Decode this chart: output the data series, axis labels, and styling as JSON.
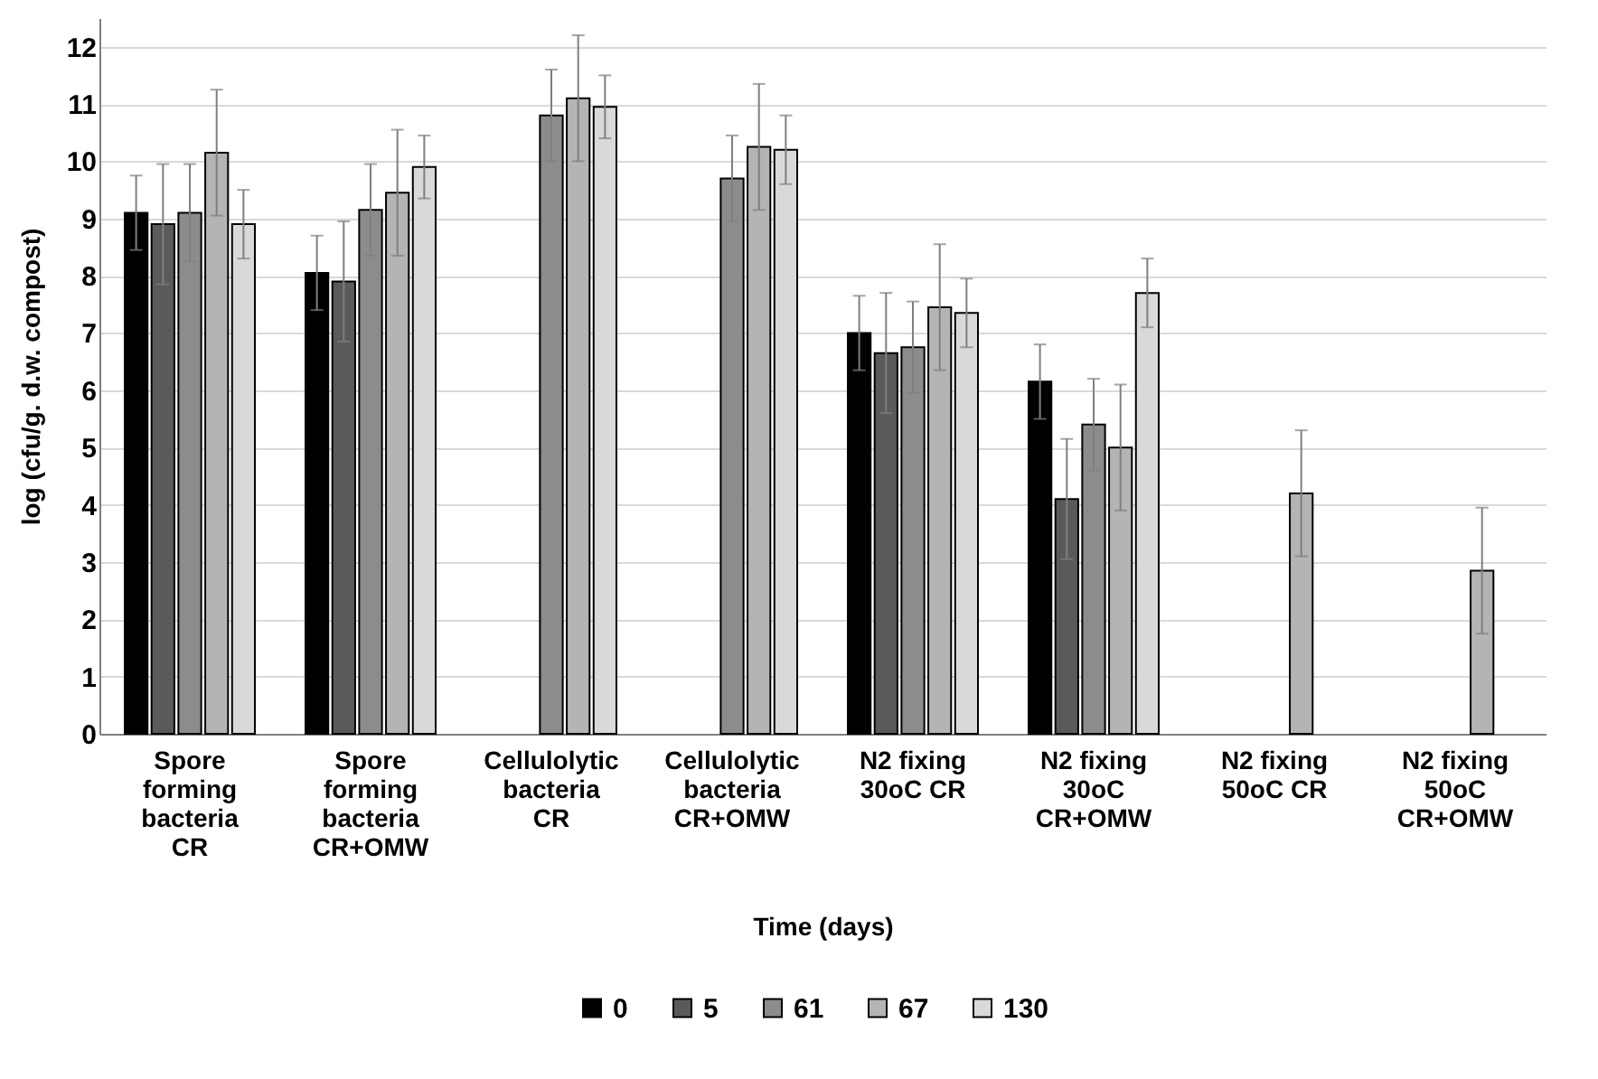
{
  "chart_data": {
    "type": "bar",
    "xlabel": "Time (days)",
    "ylabel": "log (cfu/g. d.w. compost)",
    "categories": [
      "Spore forming bacteria CR",
      "Spore forming bacteria CR+OMW",
      "Cellulolytic bacteria CR",
      "Cellulolytic bacteria CR+OMW",
      "N2 fixing 30oC CR",
      "N2 fixing 30oC CR+OMW",
      "N2 fixing 50oC CR",
      "N2 fixing 50oC CR+OMW"
    ],
    "series": [
      {
        "name": "0",
        "color": "#000000",
        "values": [
          9.1,
          8.05,
          null,
          null,
          7.0,
          6.15,
          null,
          null
        ],
        "errors": [
          0.65,
          0.65,
          null,
          null,
          0.65,
          0.65,
          null,
          null
        ]
      },
      {
        "name": "5",
        "color": "#5a5a5a",
        "values": [
          8.9,
          7.9,
          null,
          null,
          6.65,
          4.1,
          null,
          null
        ],
        "errors": [
          1.05,
          1.05,
          null,
          null,
          1.05,
          1.05,
          null,
          null
        ]
      },
      {
        "name": "61",
        "color": "#8c8c8c",
        "values": [
          9.1,
          9.15,
          10.8,
          9.7,
          6.75,
          5.4,
          null,
          null
        ],
        "errors": [
          0.85,
          0.8,
          0.8,
          0.75,
          0.8,
          0.8,
          null,
          null
        ]
      },
      {
        "name": "67",
        "color": "#b4b4b4",
        "values": [
          10.15,
          9.45,
          11.1,
          10.25,
          7.45,
          5.0,
          4.2,
          2.85
        ],
        "errors": [
          1.1,
          1.1,
          1.1,
          1.1,
          1.1,
          1.1,
          1.1,
          1.1
        ]
      },
      {
        "name": "130",
        "color": "#d9d9d9",
        "values": [
          8.9,
          9.9,
          10.95,
          10.2,
          7.35,
          7.7,
          null,
          null
        ],
        "errors": [
          0.6,
          0.55,
          0.55,
          0.6,
          0.6,
          0.6,
          null,
          null
        ]
      }
    ],
    "ylim": [
      0,
      12.5
    ],
    "yticks": [
      0,
      1,
      2,
      3,
      4,
      5,
      6,
      7,
      8,
      9,
      10,
      11,
      12
    ],
    "grid": "y",
    "legend": "bottom"
  }
}
